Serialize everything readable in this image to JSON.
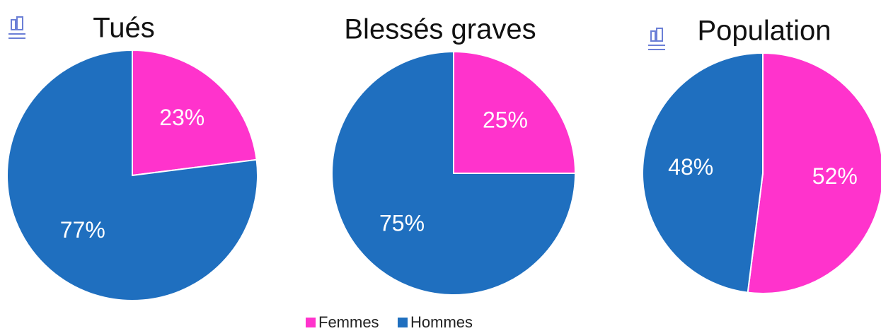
{
  "chart_data": [
    {
      "type": "pie",
      "title": "Tués",
      "categories": [
        "Femmes",
        "Hommes"
      ],
      "values": [
        23,
        77
      ],
      "value_labels": [
        "23%",
        "77%"
      ],
      "colors": [
        "#ff33cc",
        "#1f6fbf"
      ]
    },
    {
      "type": "pie",
      "title": "Blessés graves",
      "categories": [
        "Femmes",
        "Hommes"
      ],
      "values": [
        25,
        75
      ],
      "value_labels": [
        "25%",
        "75%"
      ],
      "colors": [
        "#ff33cc",
        "#1f6fbf"
      ]
    },
    {
      "type": "pie",
      "title": "Population",
      "categories": [
        "Femmes",
        "Hommes"
      ],
      "values": [
        52,
        48
      ],
      "value_labels": [
        "52%",
        "48%"
      ],
      "colors": [
        "#ff33cc",
        "#1f6fbf"
      ]
    }
  ]
}
